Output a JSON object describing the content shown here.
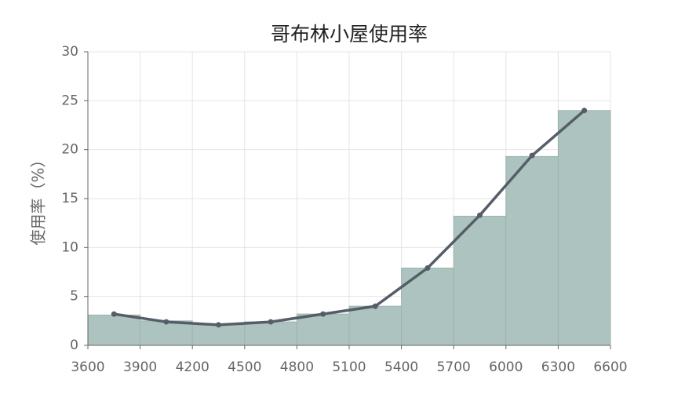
{
  "chart_data": {
    "type": "histogram",
    "title": "哥布林小屋使用率",
    "y_label": "使用率（%）",
    "bins": [
      3600,
      3900,
      4200,
      4500,
      4800,
      5100,
      5400,
      5700,
      6000,
      6300,
      6600
    ],
    "values": [
      3.1,
      2.5,
      2.1,
      2.4,
      3.2,
      4.0,
      7.9,
      13.2,
      19.3,
      24.0
    ],
    "color": "#adc3bf",
    "line": {
      "color": "#555e68",
      "x": [
        3750,
        4050,
        4350,
        4650,
        4950,
        5250,
        5550,
        5850,
        6150,
        6450
      ],
      "values": [
        3.2,
        2.4,
        2.1,
        2.4,
        3.2,
        4.0,
        7.9,
        13.3,
        19.4,
        24.0
      ]
    },
    "xlim": [
      3600,
      6600
    ],
    "xticks": [
      3600,
      3900,
      4200,
      4500,
      4800,
      5100,
      5400,
      5700,
      6000,
      6300,
      6600
    ],
    "ylim": [
      0,
      30
    ],
    "yticks": [
      0,
      5,
      10,
      15,
      20,
      25,
      30
    ],
    "grid": true
  }
}
